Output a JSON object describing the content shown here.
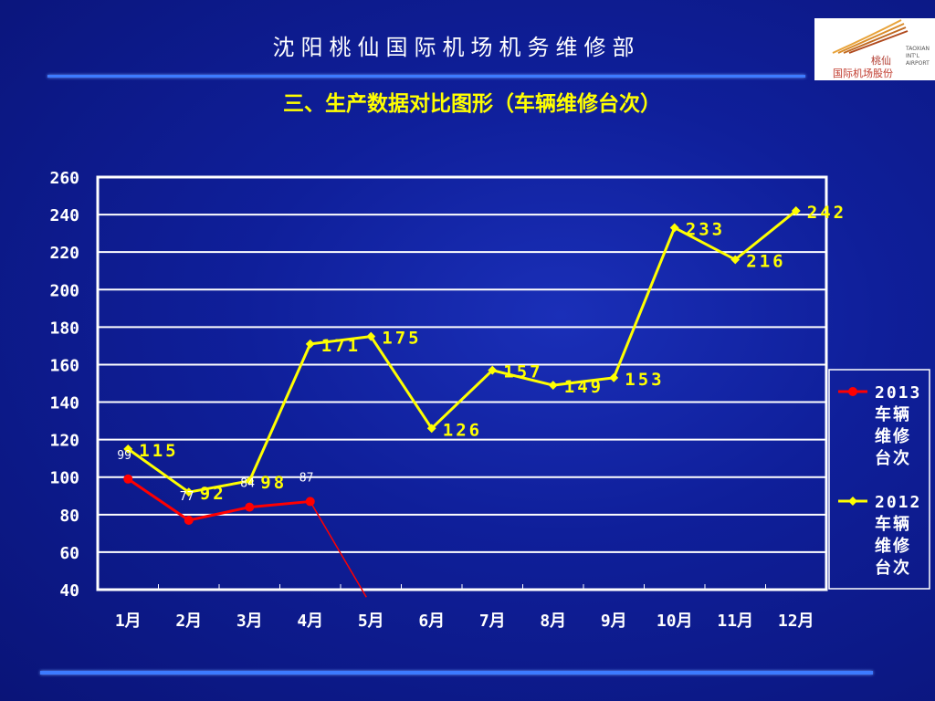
{
  "header": {
    "title": "沈阳桃仙国际机场机务维修部",
    "logo_brand": "桃仙",
    "logo_cn": "国际机场股份",
    "logo_en": "TAOXIAN INT'L AIRPORT"
  },
  "subtitle": "三、生产数据对比图形（车辆维修台次）",
  "colors": {
    "background": "#0f1f9a",
    "rule": "#3d7bff",
    "series_2013": "#ff0000",
    "series_2012": "#ffff00"
  },
  "chart_data": {
    "type": "line",
    "title": "",
    "xlabel": "",
    "ylabel": "",
    "categories": [
      "1月",
      "2月",
      "3月",
      "4月",
      "5月",
      "6月",
      "7月",
      "8月",
      "9月",
      "10月",
      "11月",
      "12月"
    ],
    "ylim": [
      40,
      260
    ],
    "yticks": [
      40,
      60,
      80,
      100,
      120,
      140,
      160,
      180,
      200,
      220,
      240,
      260
    ],
    "grid": true,
    "legend_position": "right",
    "series": [
      {
        "name": "2013车辆维修台次",
        "legend_lines": [
          "2013",
          "车辆",
          "维修",
          "台次"
        ],
        "color": "#ff0000",
        "values": [
          99,
          77,
          84,
          87,
          null,
          null,
          null,
          null,
          null,
          null,
          null,
          null
        ],
        "trailing_drop_to": 36
      },
      {
        "name": "2012车辆维修台次",
        "legend_lines": [
          "2012",
          "车辆",
          "维修",
          "台次"
        ],
        "color": "#ffff00",
        "values": [
          115,
          92,
          98,
          171,
          175,
          126,
          157,
          149,
          153,
          233,
          216,
          242
        ]
      }
    ]
  }
}
